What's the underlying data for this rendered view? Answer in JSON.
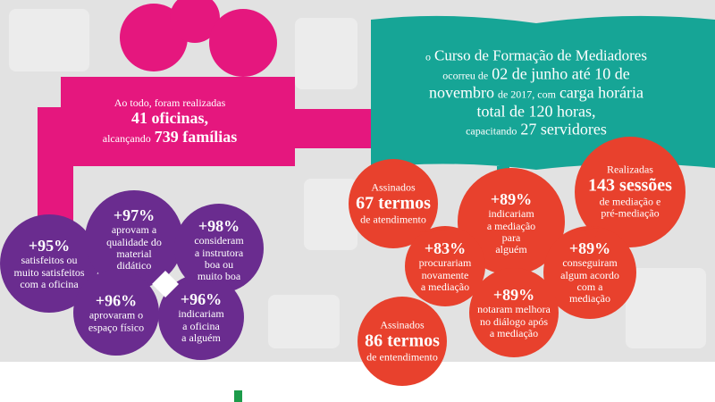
{
  "workshops": {
    "intro": "Ao todo, foram realizadas",
    "count": "41 oficinas,",
    "reach_prefix": "alcançando",
    "reach": "739 famílias"
  },
  "course": {
    "article": "o",
    "name": "Curso de Formação de Mediadores",
    "verb": "ocorreu de",
    "start": "02 de junho até 10 de",
    "end": "novembro",
    "year": "de 2017, com",
    "load": "carga horária",
    "total": "total de 120 horas,",
    "training": "capacitando",
    "staff": "27 servidores"
  },
  "satisfaction": [
    {
      "value": "+95%",
      "text": [
        "satisfeitos ou",
        "muito satisfeitos",
        "com a oficina"
      ]
    },
    {
      "value": "+97%",
      "text": [
        "aprovam a",
        "qualidade do",
        "material",
        "didático"
      ]
    },
    {
      "value": "+98%",
      "text": [
        "consideram",
        "a instrutora",
        "boa ou",
        "muito boa"
      ]
    },
    {
      "value": "+96%",
      "text": [
        "aprovaram o",
        "espaço físico"
      ]
    },
    {
      "value": "+96%",
      "text": [
        "indicariam",
        "a oficina",
        "a alguém"
      ]
    }
  ],
  "results": [
    {
      "label": "Assinados",
      "value": "67 termos",
      "text": [
        "de atendimento"
      ]
    },
    {
      "value": "+89%",
      "text": [
        "indicariam",
        "a mediação",
        "para",
        "alguém"
      ]
    },
    {
      "label": "Realizadas",
      "value": "143 sessões",
      "text": [
        "de mediação e",
        "pré-mediação"
      ]
    },
    {
      "value": "+83%",
      "text": [
        "procurariam",
        "novamente",
        "a mediação"
      ]
    },
    {
      "value": "+89%",
      "text": [
        "conseguiram",
        "algum acordo",
        "com a",
        "mediação"
      ]
    },
    {
      "value": "+89%",
      "text": [
        "notaram melhora",
        "no diálogo após",
        "a mediação"
      ]
    },
    {
      "label": "Assinados",
      "value": "86 termos",
      "text": [
        "de entendimento"
      ]
    }
  ]
}
